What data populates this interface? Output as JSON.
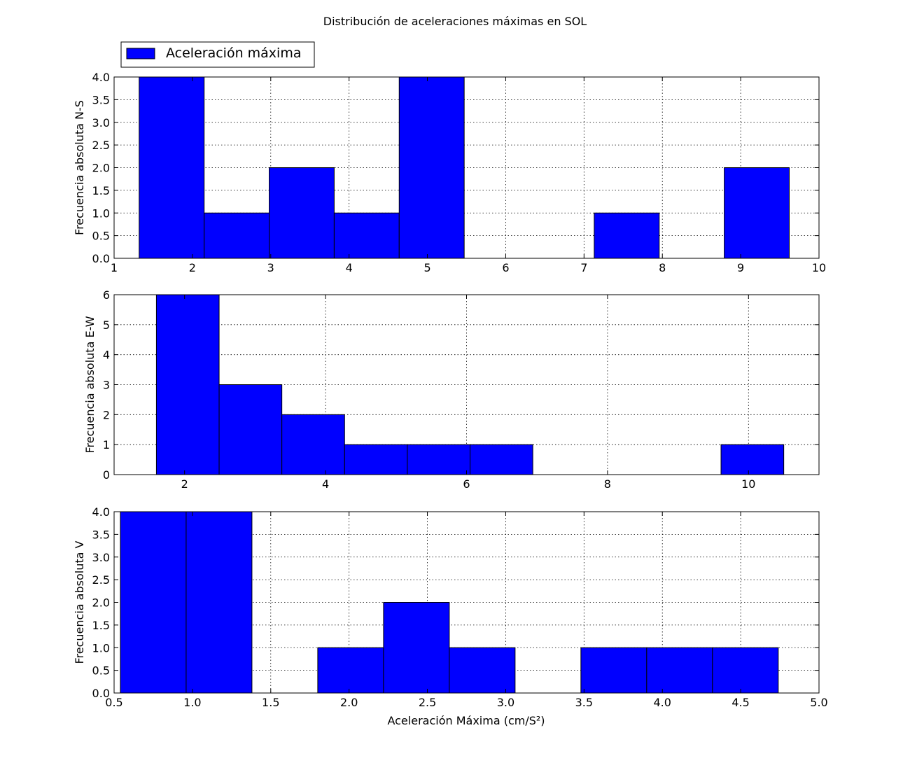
{
  "figure": {
    "title": "Distribución de aceleraciones máximas en SOL",
    "xlabel": "Aceleración Máxima (cm/S²)",
    "legend": {
      "label": "Aceleración máxima",
      "placement": "top-left, above first subplot"
    },
    "colors": {
      "bar_fill": "#0000ff",
      "bar_edge": "#000000",
      "grid": "#000000",
      "background": "#ffffff"
    }
  },
  "chart_data": [
    {
      "type": "bar",
      "subtype": "histogram",
      "ylabel": "Frecuencia absoluta N-S",
      "xlim": [
        1,
        10
      ],
      "ylim": [
        0,
        4
      ],
      "xticks": [
        1,
        2,
        3,
        4,
        5,
        6,
        7,
        8,
        9,
        10
      ],
      "xtick_labels": [
        "1",
        "2",
        "3",
        "4",
        "5",
        "6",
        "7",
        "8",
        "9",
        "10"
      ],
      "yticks": [
        0,
        0.5,
        1,
        1.5,
        2,
        2.5,
        3,
        3.5,
        4
      ],
      "ytick_labels": [
        "0.0",
        "0.5",
        "1.0",
        "1.5",
        "2.0",
        "2.5",
        "3.0",
        "3.5",
        "4.0"
      ],
      "grid": true,
      "series": [
        {
          "bin_edges": [
            1.32,
            2.15,
            2.98,
            3.81,
            4.64,
            5.47,
            6.3,
            7.13,
            7.96,
            8.79,
            9.62
          ],
          "values": [
            4,
            1,
            2,
            1,
            4,
            0,
            0,
            1,
            0,
            2
          ]
        }
      ]
    },
    {
      "type": "bar",
      "subtype": "histogram",
      "ylabel": "Frecuencia absoluta E-W",
      "xlim": [
        1,
        11
      ],
      "ylim": [
        0,
        6
      ],
      "xticks": [
        2,
        4,
        6,
        8,
        10
      ],
      "xtick_labels": [
        "2",
        "4",
        "6",
        "8",
        "10"
      ],
      "yticks": [
        0,
        1,
        2,
        3,
        4,
        5,
        6
      ],
      "ytick_labels": [
        "0",
        "1",
        "2",
        "3",
        "4",
        "5",
        "6"
      ],
      "grid": true,
      "series": [
        {
          "bin_edges": [
            1.6,
            2.49,
            3.38,
            4.27,
            5.16,
            6.05,
            6.94,
            7.83,
            8.72,
            9.61,
            10.5
          ],
          "values": [
            6,
            3,
            2,
            1,
            1,
            1,
            0,
            0,
            0,
            1
          ]
        }
      ]
    },
    {
      "type": "bar",
      "subtype": "histogram",
      "ylabel": "Frecuencia absoluta V",
      "xlim": [
        0.5,
        5.0
      ],
      "ylim": [
        0,
        4
      ],
      "xticks": [
        0.5,
        1.0,
        1.5,
        2.0,
        2.5,
        3.0,
        3.5,
        4.0,
        4.5,
        5.0
      ],
      "xtick_labels": [
        "0.5",
        "1.0",
        "1.5",
        "2.0",
        "2.5",
        "3.0",
        "3.5",
        "4.0",
        "4.5",
        "5.0"
      ],
      "yticks": [
        0,
        0.5,
        1,
        1.5,
        2,
        2.5,
        3,
        3.5,
        4
      ],
      "ytick_labels": [
        "0.0",
        "0.5",
        "1.0",
        "1.5",
        "2.0",
        "2.5",
        "3.0",
        "3.5",
        "4.0"
      ],
      "grid": true,
      "series": [
        {
          "bin_edges": [
            0.54,
            0.96,
            1.38,
            1.8,
            2.22,
            2.64,
            3.06,
            3.48,
            3.9,
            4.32,
            4.74
          ],
          "values": [
            4,
            4,
            0,
            1,
            2,
            1,
            0,
            1,
            1,
            1
          ]
        }
      ]
    }
  ]
}
